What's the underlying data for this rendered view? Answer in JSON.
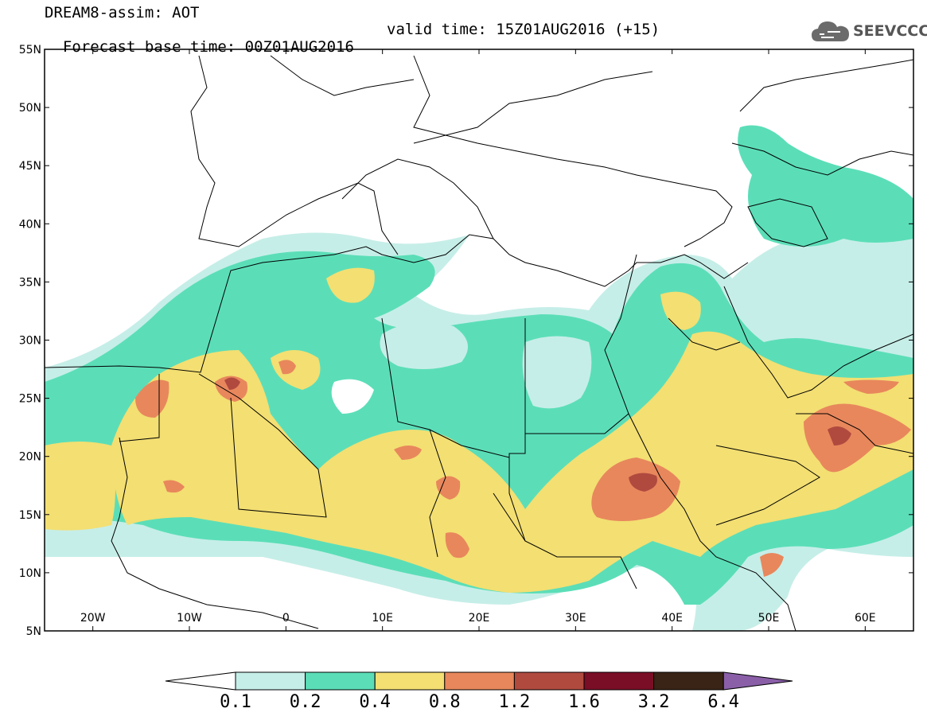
{
  "header": {
    "title": "DREAM8-assim: AOT",
    "base_time": "Forecast base time: 00Z01AUG2016",
    "valid_time": "valid time: 15Z01AUG2016 (+15)"
  },
  "logo": {
    "text": "SEEVCCC",
    "icon": "cloud-icon"
  },
  "map": {
    "projection": "lat-lon",
    "lon_range": [
      -25,
      65
    ],
    "lat_range": [
      5,
      55
    ],
    "lat_ticks": [
      {
        "value": 55,
        "label": "55N"
      },
      {
        "value": 50,
        "label": "50N"
      },
      {
        "value": 45,
        "label": "45N"
      },
      {
        "value": 40,
        "label": "40N"
      },
      {
        "value": 35,
        "label": "35N"
      },
      {
        "value": 30,
        "label": "30N"
      },
      {
        "value": 25,
        "label": "25N"
      },
      {
        "value": 20,
        "label": "20N"
      },
      {
        "value": 15,
        "label": "15N"
      },
      {
        "value": 10,
        "label": "10N"
      },
      {
        "value": 5,
        "label": "5N"
      }
    ],
    "lon_ticks": [
      {
        "value": -20,
        "label": "20W"
      },
      {
        "value": -10,
        "label": "10W"
      },
      {
        "value": 0,
        "label": "0"
      },
      {
        "value": 10,
        "label": "10E"
      },
      {
        "value": 20,
        "label": "20E"
      },
      {
        "value": 30,
        "label": "30E"
      },
      {
        "value": 40,
        "label": "40E"
      },
      {
        "value": 50,
        "label": "50E"
      },
      {
        "value": 60,
        "label": "60E"
      }
    ]
  },
  "colorbar": {
    "levels": [
      "0.1",
      "0.2",
      "0.4",
      "0.8",
      "1.2",
      "1.6",
      "3.2",
      "6.4"
    ],
    "colors": [
      "#ffffff",
      "#c6eee8",
      "#5bdeb8",
      "#f3df72",
      "#e8875c",
      "#b04a3f",
      "#7a0e26",
      "#3a2416",
      "#8a5fa8"
    ]
  }
}
